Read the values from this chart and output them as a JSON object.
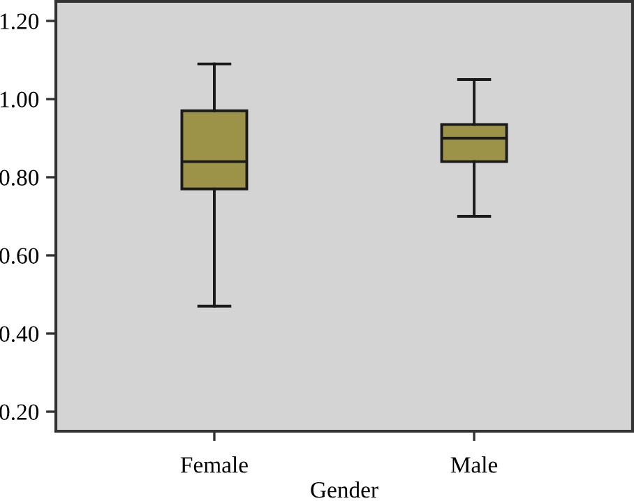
{
  "chart_data": {
    "type": "box",
    "xlabel": "Gender",
    "categories": [
      "Female",
      "Male"
    ],
    "boxes": [
      {
        "low": 0.47,
        "q1": 0.77,
        "median": 0.84,
        "q3": 0.97,
        "high": 1.09
      },
      {
        "low": 0.7,
        "q1": 0.84,
        "median": 0.9,
        "q3": 0.935,
        "high": 1.05
      }
    ],
    "color": "#9c9248",
    "ylim": [
      0.15,
      1.25
    ],
    "yticks": [
      {
        "value": 0.2,
        "label": "0.20"
      },
      {
        "value": 0.4,
        "label": "0.40"
      },
      {
        "value": 0.6,
        "label": "0.60"
      },
      {
        "value": 0.8,
        "label": "0.80"
      },
      {
        "value": 1.0,
        "label": "1.00"
      },
      {
        "value": 1.2,
        "label": "1.20"
      }
    ],
    "grid": false
  }
}
